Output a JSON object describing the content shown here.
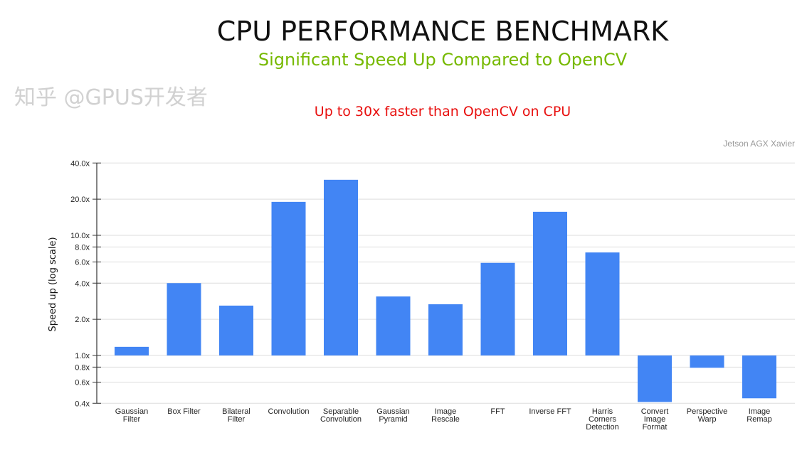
{
  "header": {
    "title": "CPU PERFORMANCE BENCHMARK",
    "subtitle": "Significant Speed Up Compared to OpenCV"
  },
  "watermark": "知乎 @GPUS开发者",
  "chart_data": {
    "type": "bar",
    "title": "Up to 30x faster than OpenCV on CPU",
    "annotation": "Jetson AGX Xavier",
    "xlabel": "",
    "ylabel": "Speed up (log scale)",
    "yscale": "log",
    "ylim": [
      0.4,
      40
    ],
    "baseline": 1.0,
    "yticks": [
      0.4,
      0.6,
      0.8,
      1.0,
      2.0,
      4.0,
      6.0,
      8.0,
      10.0,
      20.0,
      40.0
    ],
    "ytick_labels": [
      "0.4x",
      "0.6x",
      "0.8x",
      "1.0x",
      "2.0x",
      "4.0x",
      "6.0x",
      "8.0x",
      "10.0x",
      "20.0x",
      "40.0x"
    ],
    "grid": true,
    "color": "#4285f4",
    "categories": [
      [
        "Gaussian",
        "Filter"
      ],
      [
        "Box Filter"
      ],
      [
        "Bilateral",
        "Filter"
      ],
      [
        "Convolution"
      ],
      [
        "Separable",
        "Convolution"
      ],
      [
        "Gaussian",
        "Pyramid"
      ],
      [
        "Image",
        "Rescale"
      ],
      [
        "FFT"
      ],
      [
        "Inverse FFT"
      ],
      [
        "Harris",
        "Corners",
        "Detection"
      ],
      [
        "Convert",
        "Image",
        "Format"
      ],
      [
        "Perspective",
        "Warp"
      ],
      [
        "Image",
        "Remap"
      ]
    ],
    "values": [
      1.18,
      4.0,
      2.6,
      19.0,
      29.0,
      3.1,
      2.67,
      5.9,
      15.7,
      7.2,
      0.41,
      0.79,
      0.44
    ]
  }
}
